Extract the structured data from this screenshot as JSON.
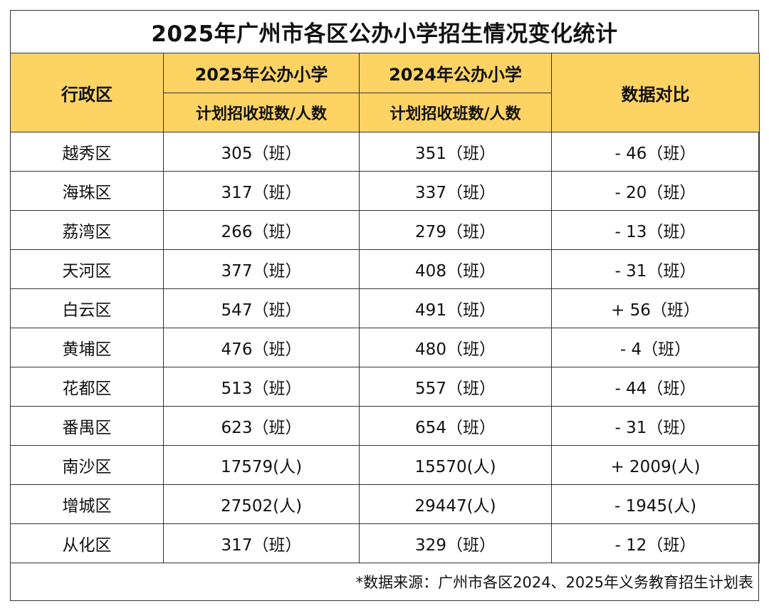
{
  "title": "2025年广州市各区公办小学招生情况变化统计",
  "header": {
    "district": "行政区",
    "col_2025": "2025年公办小学",
    "col_2024": "2024年公办小学",
    "sub_2025": "计划招收班数/人数",
    "sub_2024": "计划招收班数/人数",
    "compare": "数据对比"
  },
  "rows": [
    {
      "district": "越秀区",
      "y2025": "305（班）",
      "y2024": "351（班）",
      "diff": "- 46（班）"
    },
    {
      "district": "海珠区",
      "y2025": "317（班）",
      "y2024": "337（班）",
      "diff": "- 20（班）"
    },
    {
      "district": "荔湾区",
      "y2025": "266（班）",
      "y2024": "279（班）",
      "diff": "- 13（班）"
    },
    {
      "district": "天河区",
      "y2025": "377（班）",
      "y2024": "408（班）",
      "diff": "- 31（班）"
    },
    {
      "district": "白云区",
      "y2025": "547（班）",
      "y2024": "491（班）",
      "diff": "+ 56（班）"
    },
    {
      "district": "黄埔区",
      "y2025": "476（班）",
      "y2024": "480（班）",
      "diff": "- 4（班）"
    },
    {
      "district": "花都区",
      "y2025": "513（班）",
      "y2024": "557（班）",
      "diff": "- 44（班）"
    },
    {
      "district": "番禺区",
      "y2025": "623（班）",
      "y2024": "654（班）",
      "diff": "- 31（班）"
    },
    {
      "district": "南沙区",
      "y2025": "17579(人)",
      "y2024": "15570(人)",
      "diff": "+ 2009(人)"
    },
    {
      "district": "增城区",
      "y2025": "27502(人)",
      "y2024": "29447(人)",
      "diff": "- 1945(人)"
    },
    {
      "district": "从化区",
      "y2025": "317（班）",
      "y2024": "329（班）",
      "diff": "- 12（班）"
    }
  ],
  "footer": "*数据来源：广州市各区2024、2025年义务教育招生计划表",
  "colors": {
    "header_bg": "#fdd364",
    "border": "#333333"
  }
}
